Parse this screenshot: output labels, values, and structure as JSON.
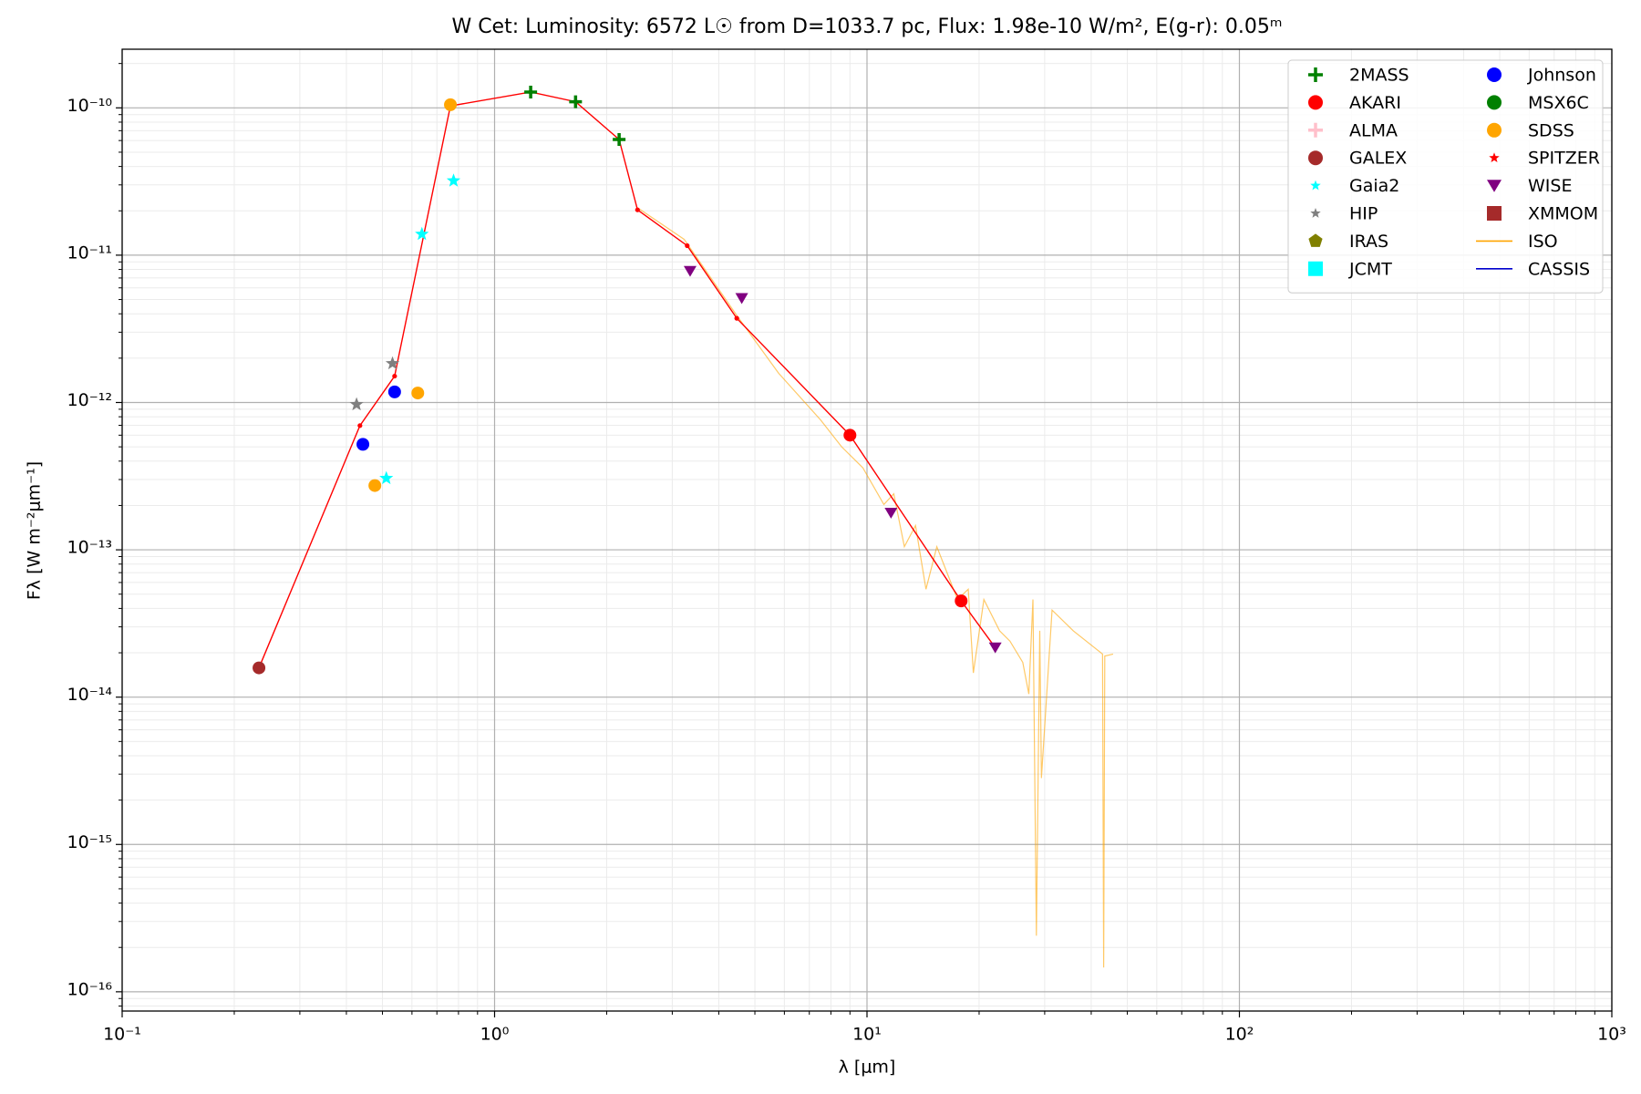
{
  "chart_data": {
    "type": "scatter",
    "title": "W Cet:  Luminosity: 6572 L☉ from D=1033.7 pc, Flux: 1.98e-10 W/m², E(g-r): 0.05ᵐ",
    "x_label": "λ [μm]",
    "y_label": "Fλ [W m⁻²μm⁻¹]",
    "x_scale": "log",
    "y_scale": "log",
    "grid": true,
    "legend": "upper right",
    "legend_columns": 2,
    "xlim": [
      0.1,
      1000
    ],
    "ylim": [
      7.4e-17,
      2.5e-10
    ],
    "xticks": [
      {
        "value": 0.1,
        "label": "10⁻¹"
      },
      {
        "value": 1,
        "label": "10⁰"
      },
      {
        "value": 10,
        "label": "10¹"
      },
      {
        "value": 100,
        "label": "10²"
      },
      {
        "value": 1000,
        "label": "10³"
      }
    ],
    "yticks": [
      {
        "value": 1e-16,
        "label": "10⁻¹⁶"
      },
      {
        "value": 1e-15,
        "label": "10⁻¹⁵"
      },
      {
        "value": 1e-14,
        "label": "10⁻¹⁴"
      },
      {
        "value": 1e-13,
        "label": "10⁻¹³"
      },
      {
        "value": 1e-12,
        "label": "10⁻¹²"
      },
      {
        "value": 1e-11,
        "label": "10⁻¹¹"
      },
      {
        "value": 1e-10,
        "label": "10⁻¹⁰"
      }
    ],
    "model": {
      "color": "#ff0000",
      "x": [
        0.233,
        0.435,
        0.539,
        0.761,
        1.25,
        1.65,
        2.16,
        2.42,
        3.29,
        4.47,
        9.0,
        17.9,
        22.1
      ],
      "values": [
        1.58e-14,
        6.97e-13,
        1.51e-12,
        1.03e-10,
        1.28e-10,
        1.1e-10,
        6.1e-11,
        2.03e-11,
        1.16e-11,
        3.73e-12,
        6e-13,
        4.5e-14,
        2.17e-14
      ]
    },
    "series": [
      {
        "name": "2MASS",
        "color": "#008000",
        "marker": "plus",
        "x": [
          1.25,
          1.65,
          2.16
        ],
        "values": [
          1.28e-10,
          1.1e-10,
          6.1e-11
        ]
      },
      {
        "name": "AKARI",
        "color": "#ff0000",
        "marker": "circle",
        "x": [
          9.0,
          17.9
        ],
        "values": [
          6e-13,
          4.5e-14
        ]
      },
      {
        "name": "ALMA",
        "color": "#ffc0cb",
        "marker": "plus",
        "x": [],
        "values": []
      },
      {
        "name": "GALEX",
        "color": "#a52a2a",
        "marker": "circle",
        "x": [
          0.233
        ],
        "values": [
          1.58e-14
        ]
      },
      {
        "name": "Gaia2",
        "color": "#00ffff",
        "marker": "star",
        "x": [
          0.776,
          0.638,
          0.512
        ],
        "values": [
          3.2e-11,
          1.39e-11,
          3.06e-13
        ]
      },
      {
        "name": "HIP",
        "color": "#808080",
        "marker": "star",
        "x": [
          0.426,
          0.532
        ],
        "values": [
          9.7e-13,
          1.84e-12
        ]
      },
      {
        "name": "IRAS",
        "color": "#808000",
        "marker": "pentagon",
        "x": [],
        "values": []
      },
      {
        "name": "JCMT",
        "color": "#00ffff",
        "marker": "square",
        "x": [],
        "values": []
      },
      {
        "name": "Johnson",
        "color": "#0000ff",
        "marker": "circle",
        "x": [
          0.443,
          0.539
        ],
        "values": [
          5.2e-13,
          1.18e-12
        ]
      },
      {
        "name": "MSX6C",
        "color": "#008000",
        "marker": "circle",
        "x": [],
        "values": []
      },
      {
        "name": "SDSS",
        "color": "#ffa500",
        "marker": "circle",
        "x": [
          0.761,
          0.477,
          0.622
        ],
        "values": [
          1.05e-10,
          2.73e-13,
          1.16e-12
        ]
      },
      {
        "name": "SPITZER",
        "color": "#ff0000",
        "marker": "star",
        "x": [],
        "values": []
      },
      {
        "name": "WISE",
        "color": "#800080",
        "marker": "triangle-down",
        "x": [
          3.35,
          4.61,
          11.6,
          22.1
        ],
        "values": [
          7.8e-12,
          5.1e-12,
          1.78e-13,
          2.17e-14
        ]
      },
      {
        "name": "XMMOM",
        "color": "#a52a2a",
        "marker": "square",
        "x": [],
        "values": []
      },
      {
        "name": "ISO",
        "color": "#ffa500",
        "marker": "line",
        "x": [
          2.42,
          3.23,
          4.47,
          5.79,
          7.51,
          8.55,
          9.75,
          11.1,
          11.8,
          12.6,
          13.5,
          14.4,
          15.4,
          16.4,
          17.5,
          18.7,
          19.3,
          20.6,
          22.7,
          24.2,
          26.2,
          27.2,
          27.9,
          28.5,
          29.1,
          29.4,
          31.4,
          35.8,
          42.9,
          43.2,
          43.5,
          45.8
        ],
        "values": [
          2.1e-11,
          1.28e-11,
          3.9e-12,
          1.58e-12,
          7.6e-13,
          5e-13,
          3.6e-13,
          2.03e-13,
          2.4e-13,
          1.05e-13,
          1.46e-13,
          5.4e-14,
          1.05e-13,
          7e-14,
          4.6e-14,
          5.4e-14,
          1.46e-14,
          4.6e-14,
          2.82e-14,
          2.4e-14,
          1.72e-14,
          1.05e-14,
          4.6e-14,
          2.4e-16,
          2.82e-14,
          2.82e-15,
          3.9e-14,
          2.82e-14,
          1.96e-14,
          1.46e-16,
          1.9e-14,
          1.96e-14
        ]
      },
      {
        "name": "CASSIS",
        "color": "#0000cd",
        "marker": "line",
        "x": [],
        "values": []
      }
    ]
  }
}
